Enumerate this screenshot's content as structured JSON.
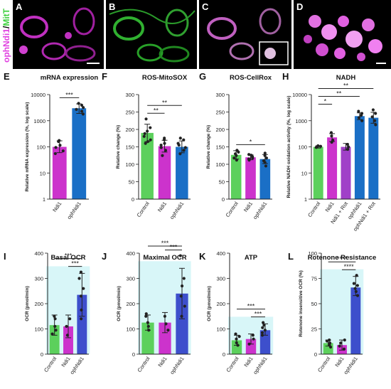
{
  "figure": {
    "side_label": {
      "part1": "ophNdi1",
      "separator": "/",
      "part2": "MitT"
    },
    "micro_panels": [
      {
        "letter": "A",
        "stain": "magenta"
      },
      {
        "letter": "B",
        "stain": "green"
      },
      {
        "letter": "C",
        "stain": "merge"
      },
      {
        "letter": "D",
        "stain": "zoom"
      }
    ]
  },
  "colors": {
    "control": "#5cd05c",
    "ndi1": "#cc33cc",
    "rot": "#a040c8",
    "oph": "#1a6fc6",
    "oph_alt": "#3d4fcc",
    "highlight": "#d8f6f8",
    "magenta": "#e040e0",
    "green": "#40d040"
  },
  "chart_data": [
    {
      "letter": "E",
      "type": "bar",
      "title": "mRNA expression",
      "ylabel": "Relative mRNA expression (%, log scale)",
      "scale": "log",
      "ylim": [
        1,
        10000
      ],
      "yticks": [
        1,
        10,
        100,
        1000,
        10000
      ],
      "ytick_labels": [
        "1",
        "10",
        "100",
        "1000",
        "10000"
      ],
      "categories": [
        "Ndi1",
        "ophNdi1"
      ],
      "values": [
        100,
        3000
      ],
      "errors": [
        [
          60,
          170
        ],
        [
          1900,
          4400
        ]
      ],
      "color_keys": [
        "ndi1",
        "oph"
      ],
      "points": [
        [
          55,
          70,
          95,
          115,
          160,
          175
        ],
        [
          1800,
          2300,
          2700,
          3200,
          3900,
          4600
        ]
      ],
      "significance": [
        {
          "pair": [
            0,
            1
          ],
          "label": "***"
        }
      ]
    },
    {
      "letter": "F",
      "type": "bar",
      "title": "ROS-MitoSOX",
      "ylabel": "Relative change (%)",
      "scale": "linear",
      "ylim": [
        0,
        300
      ],
      "yticks": [
        0,
        50,
        100,
        150,
        200,
        250,
        300
      ],
      "ytick_labels": [
        "0",
        "50",
        "100",
        "150",
        "200",
        "250",
        "300"
      ],
      "categories": [
        "Control",
        "Ndi1",
        "ophNdi1"
      ],
      "values": [
        190,
        152,
        150
      ],
      "errors": [
        [
          165,
          215
        ],
        [
          135,
          169
        ],
        [
          133,
          167
        ]
      ],
      "color_keys": [
        "control",
        "ndi1",
        "oph"
      ],
      "points": [
        [
          160,
          170,
          180,
          188,
          195,
          205,
          230,
          165
        ],
        [
          125,
          140,
          148,
          155,
          160,
          170,
          175
        ],
        [
          130,
          140,
          148,
          155,
          160,
          170,
          175
        ]
      ],
      "significance": [
        {
          "pair": [
            0,
            1
          ],
          "label": "**"
        },
        {
          "pair": [
            0,
            2
          ],
          "label": "**"
        }
      ]
    },
    {
      "letter": "G",
      "type": "bar",
      "title": "ROS-CellRox",
      "ylabel": "Relative change (%)",
      "scale": "linear",
      "ylim": [
        0,
        300
      ],
      "yticks": [
        0,
        50,
        100,
        150,
        200,
        250,
        300
      ],
      "ytick_labels": [
        "0",
        "50",
        "100",
        "150",
        "200",
        "250",
        "300"
      ],
      "categories": [
        "Control",
        "Ndi1",
        "ophNdi1"
      ],
      "values": [
        127,
        120,
        115
      ],
      "errors": [
        [
          115,
          139
        ],
        [
          113,
          127
        ],
        [
          102,
          128
        ]
      ],
      "color_keys": [
        "control",
        "ndi1",
        "oph"
      ],
      "points": [
        [
          112,
          118,
          125,
          130,
          135,
          140
        ],
        [
          112,
          115,
          118,
          122,
          126,
          128
        ],
        [
          95,
          105,
          110,
          118,
          125,
          132
        ]
      ],
      "significance": [
        {
          "pair": [
            0,
            2
          ],
          "label": "*"
        }
      ]
    },
    {
      "letter": "H",
      "type": "bar",
      "title": "NADH",
      "ylabel": "Relative NADH oxidation activity (%, log scale)",
      "scale": "log",
      "ylim": [
        1,
        10000
      ],
      "yticks": [
        1,
        10,
        100,
        1000,
        10000
      ],
      "ytick_labels": [
        "1",
        "10",
        "100",
        "1000",
        "10000"
      ],
      "categories": [
        "Control",
        "Ndi1",
        "Ndi1 + Rot",
        "ophNdi1",
        "ophNdi1 + Rot"
      ],
      "values": [
        100,
        230,
        100,
        1500,
        1300
      ],
      "errors": [
        [
          90,
          110
        ],
        [
          160,
          320
        ],
        [
          75,
          135
        ],
        [
          1100,
          2000
        ],
        [
          800,
          2100
        ]
      ],
      "color_keys": [
        "control",
        "ndi1",
        "rot",
        "oph",
        "oph"
      ],
      "points": [
        [
          95,
          100,
          105,
          110
        ],
        [
          150,
          180,
          260,
          350
        ],
        [
          80,
          100,
          125
        ],
        [
          1000,
          1300,
          1600,
          1900,
          2300
        ],
        [
          700,
          1000,
          1400,
          1900,
          2600
        ]
      ],
      "significance": [
        {
          "pair": [
            0,
            1
          ],
          "label": "*"
        },
        {
          "pair": [
            0,
            3
          ],
          "label": "**"
        },
        {
          "pair": [
            0,
            4
          ],
          "label": "**"
        }
      ]
    },
    {
      "letter": "I",
      "type": "bar",
      "title": "Basal OCR",
      "ylabel": "OCR (pmol/min)",
      "scale": "linear",
      "ylim": [
        0,
        400
      ],
      "yticks": [
        0,
        100,
        200,
        300,
        400
      ],
      "ytick_labels": [
        "0",
        "100",
        "200",
        "300",
        "400"
      ],
      "categories": [
        "Control",
        "Ndi1",
        "ophNdi1"
      ],
      "values": [
        115,
        110,
        235
      ],
      "errors": [
        [
          75,
          155
        ],
        [
          65,
          155
        ],
        [
          150,
          320
        ]
      ],
      "color_keys": [
        "control",
        "ndi1",
        "oph_alt"
      ],
      "points": [
        [
          80,
          95,
          110,
          140,
          150
        ],
        [
          75,
          110,
          140
        ],
        [
          140,
          175,
          230,
          260,
          300,
          325
        ]
      ],
      "highlight_index": 2,
      "significance": [
        {
          "pair": [
            0,
            2
          ],
          "label": "***"
        },
        {
          "pair": [
            1,
            2
          ],
          "label": "***"
        }
      ]
    },
    {
      "letter": "J",
      "type": "bar",
      "title": "Maximal OCR",
      "ylabel": "OCR (pmol/min)",
      "scale": "linear",
      "ylim": [
        0,
        400
      ],
      "yticks": [
        0,
        100,
        200,
        300,
        400
      ],
      "ytick_labels": [
        "0",
        "100",
        "200",
        "300",
        "400"
      ],
      "categories": [
        "Control",
        "Ndi1",
        "ophNdi1"
      ],
      "values": [
        125,
        125,
        240
      ],
      "errors": [
        [
          95,
          155
        ],
        [
          85,
          165
        ],
        [
          140,
          340
        ]
      ],
      "color_keys": [
        "control",
        "ndi1",
        "oph_alt"
      ],
      "points": [
        [
          95,
          110,
          125,
          150,
          160
        ],
        [
          95,
          120,
          150
        ],
        [
          150,
          190,
          230,
          270,
          300,
          390
        ]
      ],
      "highlight_index": 2,
      "significance": [
        {
          "pair": [
            0,
            2
          ],
          "label": "***"
        },
        {
          "pair": [
            1,
            2
          ],
          "label": "***"
        }
      ]
    },
    {
      "letter": "K",
      "type": "bar",
      "title": "ATP",
      "ylabel": "OCR (pmol/min)",
      "scale": "linear",
      "ylim": [
        0,
        400
      ],
      "yticks": [
        0,
        100,
        200,
        300,
        400
      ],
      "ytick_labels": [
        "0",
        "100",
        "200",
        "300",
        "400"
      ],
      "categories": [
        "Control",
        "Ndi1",
        "ophNdi1"
      ],
      "values": [
        55,
        60,
        95
      ],
      "errors": [
        [
          35,
          75
        ],
        [
          40,
          80
        ],
        [
          75,
          120
        ]
      ],
      "color_keys": [
        "control",
        "ndi1",
        "oph_alt"
      ],
      "points": [
        [
          35,
          45,
          60,
          70,
          80
        ],
        [
          40,
          60,
          75
        ],
        [
          75,
          85,
          95,
          105,
          115,
          125
        ]
      ],
      "highlight_index": 2,
      "significance": [
        {
          "pair": [
            0,
            2
          ],
          "label": "***"
        },
        {
          "pair": [
            1,
            2
          ],
          "label": "***"
        }
      ]
    },
    {
      "letter": "L",
      "type": "bar",
      "title": "Rotenone Resistance",
      "ylabel": "Rotenone insensitive OCR (%)",
      "scale": "linear",
      "ylim": [
        0,
        100
      ],
      "yticks": [
        0,
        25,
        50,
        75,
        100
      ],
      "ytick_labels": [
        "0",
        "25",
        "50",
        "75",
        "100"
      ],
      "categories": [
        "Control",
        "Ndi1",
        "ophNdi1"
      ],
      "values": [
        11,
        9,
        66
      ],
      "errors": [
        [
          8,
          14
        ],
        [
          4,
          14
        ],
        [
          58,
          77
        ]
      ],
      "color_keys": [
        "control",
        "ndi1",
        "oph_alt"
      ],
      "points": [
        [
          7,
          9,
          11,
          13,
          14
        ],
        [
          5,
          8,
          11,
          14
        ],
        [
          58,
          62,
          65,
          68,
          70,
          78
        ]
      ],
      "highlight_index": 2,
      "significance": [
        {
          "pair": [
            0,
            2
          ],
          "label": "****"
        },
        {
          "pair": [
            1,
            2
          ],
          "label": "****"
        }
      ]
    }
  ]
}
